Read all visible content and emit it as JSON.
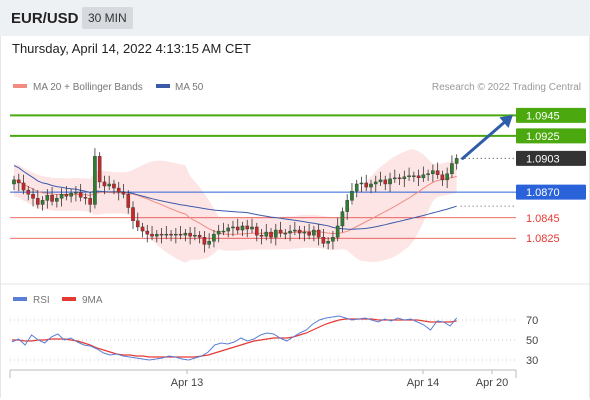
{
  "header": {
    "pair": "EUR/USD",
    "timeframe": "30 MIN"
  },
  "timestamp": "Thursday, April 14, 2022 4:13:15 AM CET",
  "legend": {
    "ma20_label": "MA 20 + Bollinger Bands",
    "ma50_label": "MA 50",
    "credit": "Research © 2022 Trading Central"
  },
  "colors": {
    "ma20": "#f28b82",
    "ma50": "#3b5ba9",
    "band_fill": "#fde2e2",
    "green_level": "#4ba90f",
    "blue_level": "#2a62d9",
    "red_level": "#e53935",
    "current_price": "#333333",
    "rsi": "#5b7fd6",
    "rsi_ma": "#e53935",
    "arrow": "#2e5ea8",
    "candle_up": "#2e7d32",
    "candle_down": "#c62828"
  },
  "chart_data": [
    {
      "type": "candlestick",
      "title": "EUR/USD",
      "x_tick_labels": [
        "Apr 13",
        "Apr 14",
        "Apr 20"
      ],
      "ylim": [
        1.0792,
        1.0962
      ],
      "levels": [
        {
          "label": "1.0945",
          "value": 1.0945,
          "kind": "resistance"
        },
        {
          "label": "1.0925",
          "value": 1.0925,
          "kind": "resistance"
        },
        {
          "label": "1.0903",
          "value": 1.0903,
          "kind": "current"
        },
        {
          "label": "1.0870",
          "value": 1.087,
          "kind": "pivot"
        },
        {
          "label": "1.0845",
          "value": 1.0845,
          "kind": "support"
        },
        {
          "label": "1.0825",
          "value": 1.0825,
          "kind": "support"
        }
      ],
      "forecast": {
        "from": 1.0903,
        "to": 1.0943,
        "direction": "up"
      },
      "close": [
        1.0882,
        1.0879,
        1.0872,
        1.0868,
        1.0864,
        1.0858,
        1.0862,
        1.0867,
        1.0861,
        1.0864,
        1.0868,
        1.0866,
        1.0869,
        1.087,
        1.0865,
        1.0864,
        1.0858,
        1.0905,
        1.088,
        1.0876,
        1.0878,
        1.0874,
        1.087,
        1.0868,
        1.0855,
        1.0842,
        1.0836,
        1.0832,
        1.0829,
        1.0827,
        1.0829,
        1.0828,
        1.0829,
        1.0828,
        1.0829,
        1.0828,
        1.083,
        1.0827,
        1.0828,
        1.0826,
        1.0819,
        1.0822,
        1.0829,
        1.0832,
        1.0832,
        1.0835,
        1.0836,
        1.0833,
        1.0837,
        1.0834,
        1.0836,
        1.0828,
        1.0827,
        1.0831,
        1.0826,
        1.0833,
        1.083,
        1.083,
        1.0832,
        1.0833,
        1.083,
        1.0831,
        1.0828,
        1.0833,
        1.0826,
        1.082,
        1.0822,
        1.0826,
        1.0837,
        1.0851,
        1.0862,
        1.0871,
        1.0878,
        1.0879,
        1.0875,
        1.0878,
        1.088,
        1.0882,
        1.0878,
        1.0883,
        1.0884,
        1.0883,
        1.0885,
        1.0886,
        1.0886,
        1.0884,
        1.0887,
        1.0888,
        1.0891,
        1.0887,
        1.0882,
        1.0888,
        1.0898,
        1.0903
      ]
    },
    {
      "type": "line",
      "title": "RSI",
      "series": [
        {
          "name": "RSI",
          "values": [
            48,
            51,
            45,
            55,
            50,
            47,
            53,
            56,
            50,
            52,
            48,
            45,
            44,
            41,
            37,
            35,
            36,
            34,
            33,
            32,
            31,
            30,
            31,
            32,
            34,
            33,
            31,
            30,
            32,
            34,
            38,
            45,
            47,
            46,
            48,
            52,
            49,
            51,
            55,
            57,
            56,
            52,
            49,
            53,
            57,
            60,
            66,
            70,
            72,
            73,
            74,
            72,
            70,
            71,
            72,
            70,
            68,
            71,
            69,
            72,
            70,
            71,
            68,
            65,
            60,
            69,
            68,
            64,
            72
          ]
        },
        {
          "name": "9MA",
          "values": [
            50,
            50,
            49,
            49,
            50,
            50,
            51,
            51,
            51,
            50,
            49,
            47,
            45,
            42,
            40,
            38,
            36,
            35,
            35,
            34,
            34,
            33,
            33,
            33,
            33,
            33,
            33,
            33,
            33,
            34,
            35,
            37,
            39,
            41,
            43,
            45,
            47,
            49,
            50,
            51,
            52,
            52,
            52,
            53,
            55,
            57,
            60,
            63,
            66,
            68,
            70,
            71,
            71,
            71,
            71,
            71,
            70,
            70,
            70,
            70,
            70,
            70,
            70,
            69,
            68,
            68,
            68,
            68,
            69
          ]
        }
      ],
      "yticks": [
        30,
        50,
        70
      ],
      "ylim": [
        20,
        80
      ]
    }
  ]
}
